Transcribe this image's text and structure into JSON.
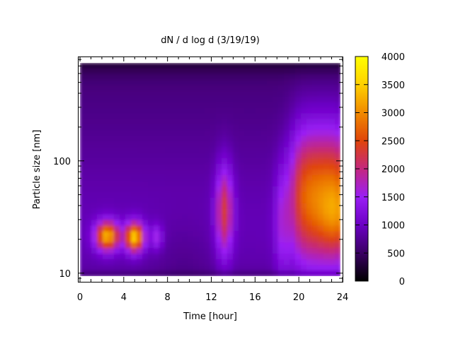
{
  "chart_data": {
    "type": "heatmap",
    "title": "dN / d log d (3/19/19)",
    "xlabel": "Time [hour]",
    "ylabel": "Particle size [nm]",
    "x_range": [
      0,
      24
    ],
    "x_ticks": [
      0,
      4,
      8,
      12,
      16,
      20,
      24
    ],
    "y_scale": "log",
    "y_range": [
      8.5,
      850
    ],
    "y_tick_labels": [
      {
        "value": 10,
        "label": "10"
      },
      {
        "value": 100,
        "label": "100"
      }
    ],
    "colorbar": {
      "min": 0,
      "max": 4000,
      "ticks": [
        0,
        500,
        1000,
        1500,
        2000,
        2500,
        3000,
        3500,
        4000
      ],
      "colors": [
        "#000000",
        "#3a0063",
        "#6b00c4",
        "#9a1ff5",
        "#c4287f",
        "#e0450a",
        "#f08a00",
        "#ffd100",
        "#ffff00"
      ]
    },
    "features": [
      {
        "time_hour": 2.5,
        "size_nm": 22,
        "peak_value": 3000
      },
      {
        "time_hour": 5.0,
        "size_nm": 21,
        "peak_value": 3200
      },
      {
        "time_hour": 13.2,
        "size_nm": 35,
        "peak_value": 2000
      },
      {
        "time_hour": 21.5,
        "size_nm": 55,
        "peak_value": 2700
      },
      {
        "time_hour": 23.5,
        "size_nm": 35,
        "peak_value": 3000
      }
    ]
  }
}
